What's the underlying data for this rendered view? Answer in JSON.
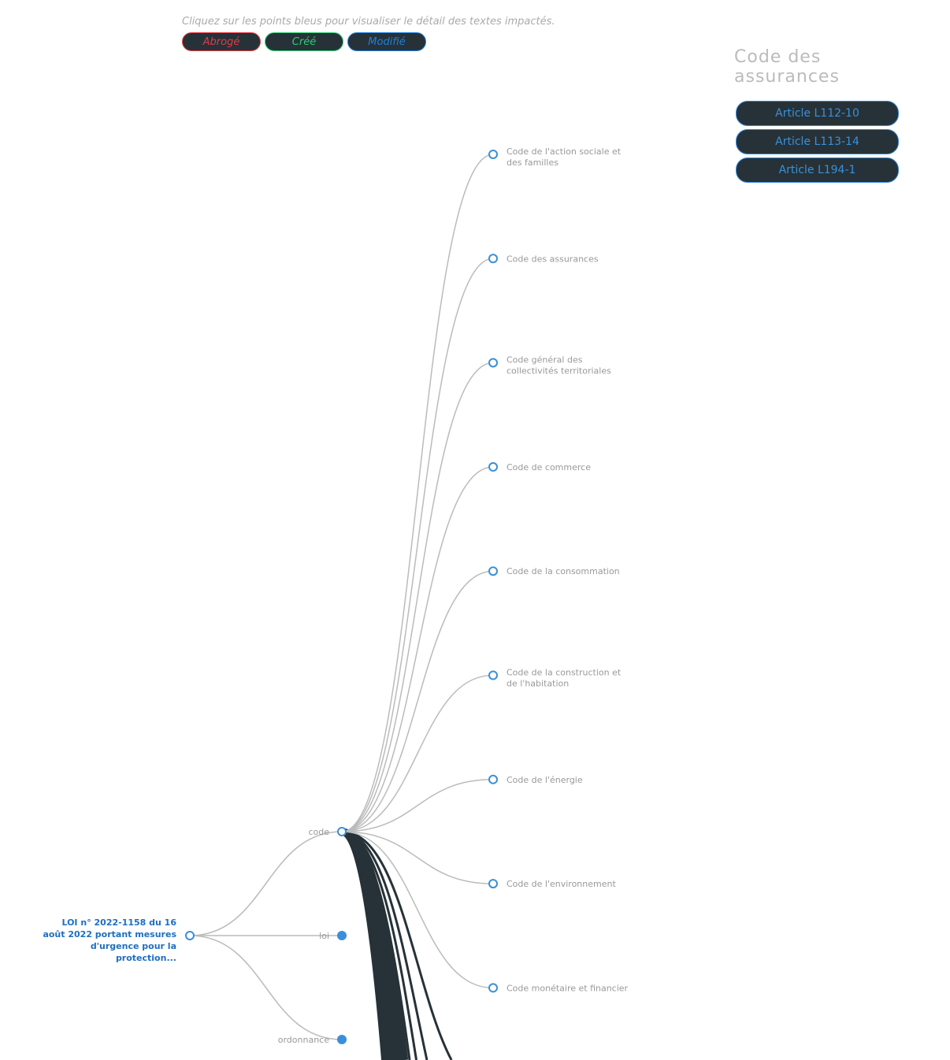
{
  "hint": "Cliquez sur les points bleus pour visualiser le détail des textes impactés.",
  "legend": [
    {
      "label": "Abrogé",
      "color": "#e53945"
    },
    {
      "label": "Créé",
      "color": "#2ecc71"
    },
    {
      "label": "Modifié",
      "color": "#1e7fe0"
    }
  ],
  "panel": {
    "title": "Code des assurances",
    "articles": [
      "Article L112-10",
      "Article L113-14",
      "Article L194-1"
    ]
  },
  "tree": {
    "root": {
      "label_lines": [
        "LOI n° 2022-1158 du 16",
        "août 2022 portant mesures",
        "d'urgence pour la",
        "protection..."
      ]
    },
    "types": [
      {
        "label": "code",
        "expanded": true
      },
      {
        "label": "loi",
        "expanded": false
      },
      {
        "label": "ordonnance",
        "expanded": false
      }
    ],
    "codes": [
      {
        "lines": [
          "Code de l'action sociale et",
          "des familles"
        ]
      },
      {
        "lines": [
          "Code des assurances"
        ]
      },
      {
        "lines": [
          "Code général des",
          "collectivités territoriales"
        ]
      },
      {
        "lines": [
          "Code de commerce"
        ]
      },
      {
        "lines": [
          "Code de la consommation"
        ]
      },
      {
        "lines": [
          "Code de la construction et",
          "de l'habitation"
        ]
      },
      {
        "lines": [
          "Code de l'énergie"
        ]
      },
      {
        "lines": [
          "Code de l'environnement"
        ]
      },
      {
        "lines": [
          "Code monétaire et financier"
        ]
      }
    ],
    "colors": {
      "node": "#3a8fd8",
      "link": "#bbbbbb",
      "highlight": "#263238"
    }
  }
}
